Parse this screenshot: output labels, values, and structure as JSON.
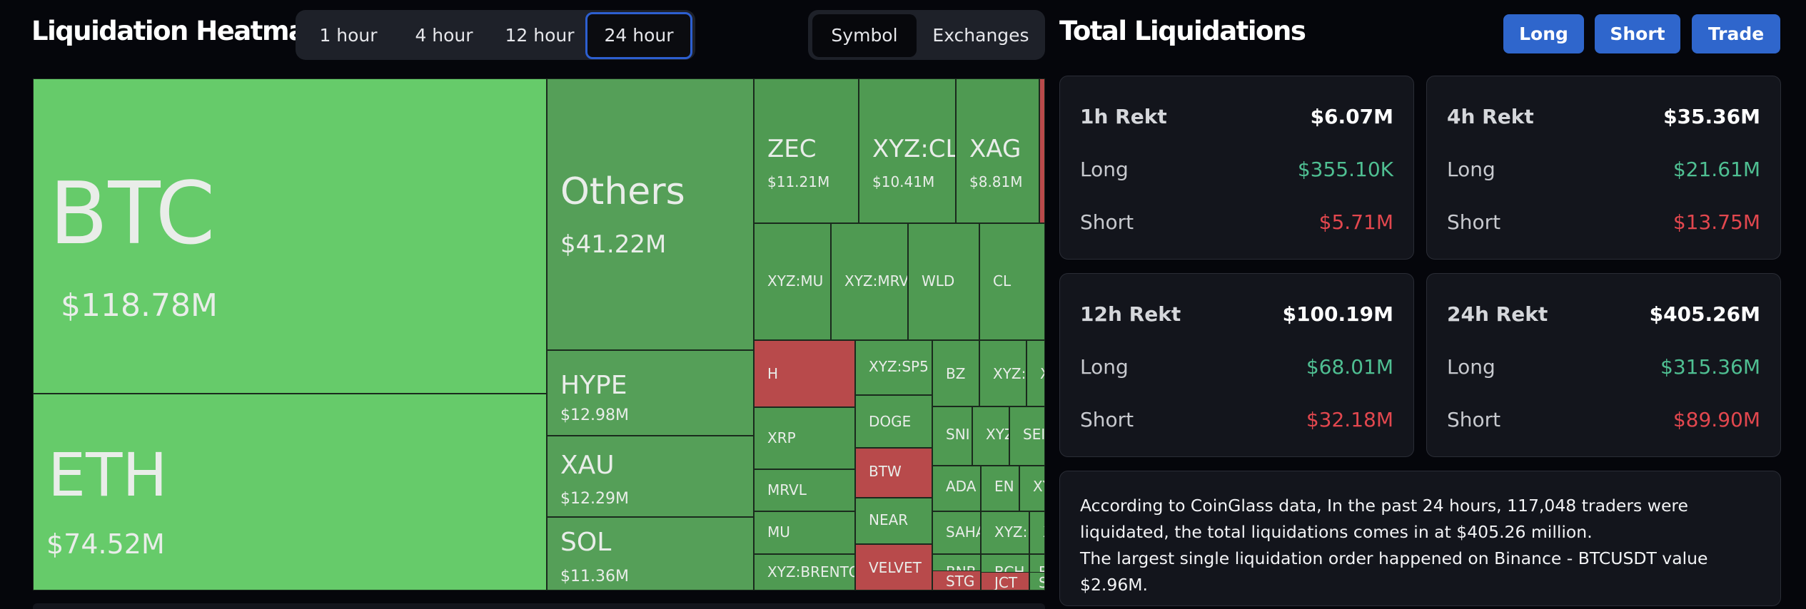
{
  "header": {
    "heatmap_title": "Liquidation Heatmap",
    "time_tabs": [
      "1 hour",
      "4 hour",
      "12 hour",
      "24 hour"
    ],
    "active_tab": "24 hour",
    "view_tabs": [
      "Symbol",
      "Exchanges"
    ],
    "active_view": "Symbol"
  },
  "right_header": {
    "title": "Total Liquidations",
    "buttons": [
      "Long",
      "Short",
      "Trade"
    ]
  },
  "treemap": [
    {
      "sym": "BTC",
      "val": "$118.78M",
      "color": "g1"
    },
    {
      "sym": "ETH",
      "val": "$74.52M",
      "color": "g1"
    },
    {
      "sym": "Others",
      "val": "$41.22M",
      "color": "g2"
    },
    {
      "sym": "HYPE",
      "val": "$12.98M",
      "color": "g2"
    },
    {
      "sym": "XAU",
      "val": "$12.29M",
      "color": "g2"
    },
    {
      "sym": "SOL",
      "val": "$11.36M",
      "color": "g2"
    },
    {
      "sym": "ZEC",
      "val": "$11.21M",
      "color": "g3"
    },
    {
      "sym": "XYZ:CL",
      "val": "$10.41M",
      "color": "g3"
    },
    {
      "sym": "XAG",
      "val": "$8.81M",
      "color": "g3"
    },
    {
      "sym": "XYZ:MU",
      "color": "g3"
    },
    {
      "sym": "XYZ:MRV",
      "color": "g3"
    },
    {
      "sym": "WLD",
      "color": "g3"
    },
    {
      "sym": "CL",
      "color": "g3"
    },
    {
      "sym": "H",
      "color": "red"
    },
    {
      "sym": "XYZ:SP5",
      "color": "g3"
    },
    {
      "sym": "BZ",
      "color": "g3"
    },
    {
      "sym": "XYZ:",
      "color": "g3"
    },
    {
      "sym": "X",
      "color": "g3"
    },
    {
      "sym": "XRP",
      "color": "g3"
    },
    {
      "sym": "DOGE",
      "color": "g3"
    },
    {
      "sym": "SNI",
      "color": "g3"
    },
    {
      "sym": "XYZ",
      "color": "g3"
    },
    {
      "sym": "SEI",
      "color": "g3"
    },
    {
      "sym": "MRVL",
      "color": "g3"
    },
    {
      "sym": "BTW",
      "color": "red"
    },
    {
      "sym": "ADA",
      "color": "g3"
    },
    {
      "sym": "EN",
      "color": "g3"
    },
    {
      "sym": "XY",
      "color": "g3"
    },
    {
      "sym": "MU",
      "color": "g3"
    },
    {
      "sym": "NEAR",
      "color": "g3"
    },
    {
      "sym": "SAHA",
      "color": "g3"
    },
    {
      "sym": "XYZ:",
      "color": "g3"
    },
    {
      "sym": "X",
      "color": "g3"
    },
    {
      "sym": "XYZ:BRENTO",
      "color": "g3"
    },
    {
      "sym": "VELVET",
      "color": "red"
    },
    {
      "sym": "BNB",
      "color": "g3"
    },
    {
      "sym": "BCH",
      "color": "g3"
    },
    {
      "sym": "B",
      "color": "g3"
    },
    {
      "sym": "STG",
      "color": "red"
    },
    {
      "sym": "JCT",
      "color": "red"
    },
    {
      "sym": "S",
      "color": "g3"
    }
  ],
  "cards": [
    {
      "title": "1h Rekt",
      "total": "$6.07M",
      "long_label": "Long",
      "long": "$355.10K",
      "short_label": "Short",
      "short": "$5.71M"
    },
    {
      "title": "4h Rekt",
      "total": "$35.36M",
      "long_label": "Long",
      "long": "$21.61M",
      "short_label": "Short",
      "short": "$13.75M"
    },
    {
      "title": "12h Rekt",
      "total": "$100.19M",
      "long_label": "Long",
      "long": "$68.01M",
      "short_label": "Short",
      "short": "$32.18M"
    },
    {
      "title": "24h Rekt",
      "total": "$405.26M",
      "long_label": "Long",
      "long": "$315.36M",
      "short_label": "Short",
      "short": "$89.90M"
    }
  ],
  "info": {
    "line1": "According to CoinGlass data, In the past 24 hours, 117,048 traders were liquidated, the total liquidations comes in at $405.26 million.",
    "line2": "The largest single liquidation order happened on Binance - BTCUSDT value $2.96M."
  },
  "colors": {
    "long_green": "#4fbf92",
    "short_red": "#e2474e",
    "accent_blue": "#2f66cc",
    "tile_green": "#66cb6a",
    "tile_red": "#b84a4b"
  }
}
